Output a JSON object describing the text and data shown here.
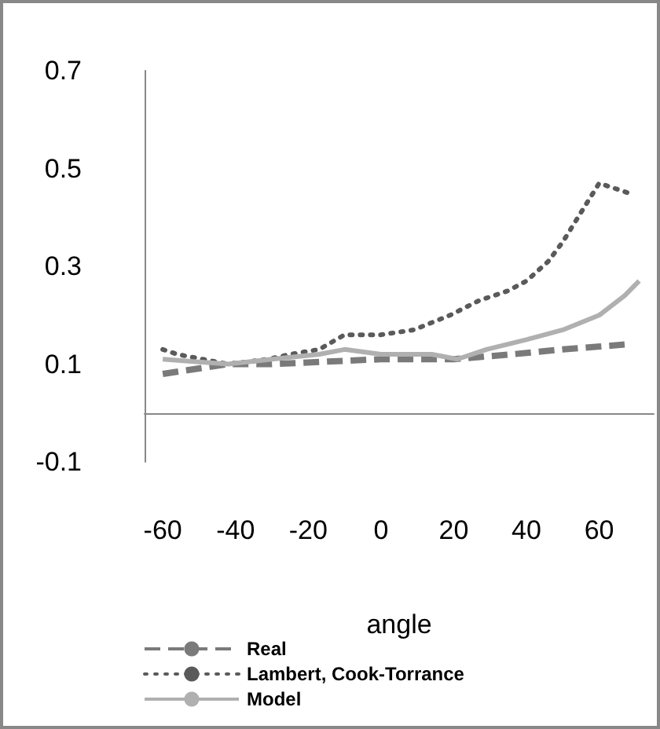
{
  "chart_data": {
    "type": "line",
    "xlabel": "angle",
    "xlim": [
      -65,
      75
    ],
    "xticks": [
      -60,
      -40,
      -20,
      0,
      20,
      40,
      60
    ],
    "ylim": [
      -0.1,
      0.7
    ],
    "yticks": [
      -0.1,
      0.1,
      0.3,
      0.5,
      0.7
    ],
    "grid": false,
    "legend": "bottom left",
    "marker": "none",
    "series": [
      {
        "name": "Real",
        "color": "#7a7a7a",
        "line_style": "dashed",
        "x": [
          -60,
          -42,
          -30,
          0,
          20,
          36,
          50,
          67
        ],
        "values": [
          0.08,
          0.1,
          0.1,
          0.11,
          0.11,
          0.12,
          0.13,
          0.14
        ]
      },
      {
        "name": "Lambert, Cook-Torrance",
        "color": "#5a5a5a",
        "line_style": "dotted",
        "x": [
          -60,
          -56,
          -42,
          -31,
          -25,
          -17,
          -10,
          0,
          9,
          19,
          27,
          35,
          40,
          46,
          50,
          55,
          60,
          64,
          68
        ],
        "values": [
          0.13,
          0.12,
          0.1,
          0.11,
          0.12,
          0.13,
          0.16,
          0.16,
          0.17,
          0.2,
          0.23,
          0.25,
          0.27,
          0.31,
          0.35,
          0.41,
          0.47,
          0.46,
          0.45
        ]
      },
      {
        "name": "Model",
        "color": "#b0b0b0",
        "line_style": "solid",
        "x": [
          -60,
          -42,
          -30,
          -17,
          -10,
          0,
          14,
          21,
          29,
          40,
          50,
          60,
          67,
          71
        ],
        "values": [
          0.11,
          0.1,
          0.11,
          0.12,
          0.13,
          0.12,
          0.12,
          0.11,
          0.13,
          0.15,
          0.17,
          0.2,
          0.24,
          0.27
        ]
      }
    ]
  }
}
